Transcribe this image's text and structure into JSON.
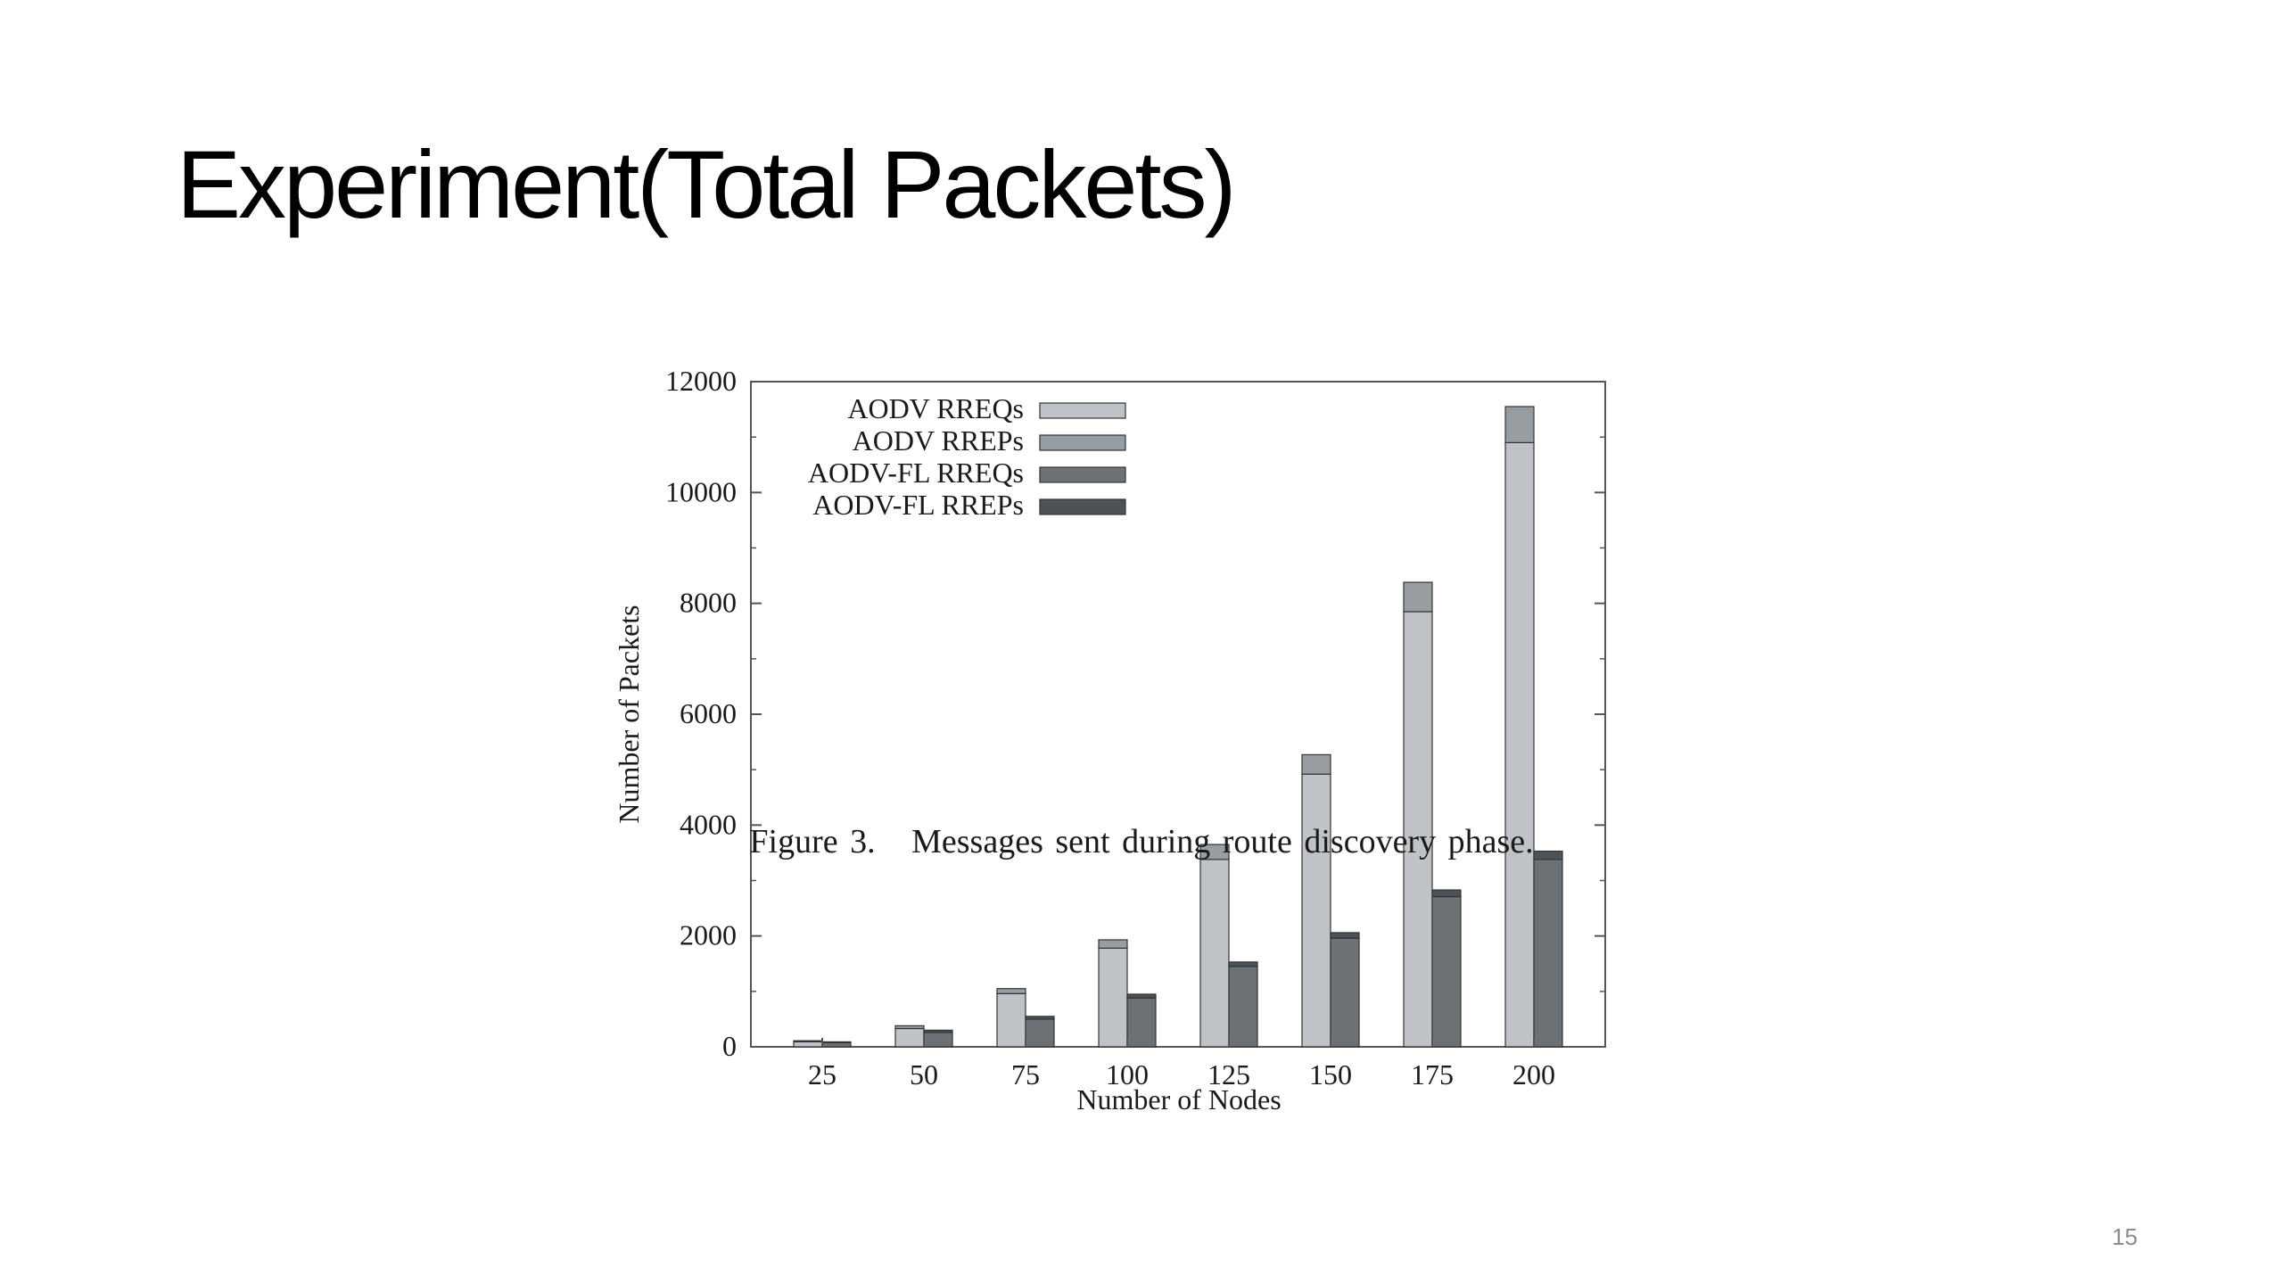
{
  "slide": {
    "title": "Experiment(Total Packets)",
    "caption": "Figure 3.   Messages sent during route discovery phase.",
    "page_number": "15"
  },
  "chart_data": {
    "type": "bar",
    "stacked": true,
    "grouped": true,
    "categories": [
      "25",
      "50",
      "75",
      "100",
      "125",
      "150",
      "175",
      "200"
    ],
    "xlabel": "Number of Nodes",
    "ylabel": "Number of Packets",
    "ylim": [
      0,
      12000
    ],
    "yticks": [
      0,
      2000,
      4000,
      6000,
      8000,
      10000,
      12000
    ],
    "grid": false,
    "legend_position": "top-left",
    "series": [
      {
        "name": "AODV RREQs",
        "group": "AODV",
        "color": "#bfc3c7",
        "values": [
          90,
          330,
          960,
          1780,
          3380,
          4920,
          7850,
          10900
        ]
      },
      {
        "name": "AODV RREPs",
        "group": "AODV",
        "color": "#989da2",
        "values": [
          20,
          50,
          90,
          150,
          270,
          350,
          530,
          650
        ]
      },
      {
        "name": "AODV-FL RREQs",
        "group": "AODV-FL",
        "color": "#6c7176",
        "values": [
          75,
          260,
          500,
          880,
          1450,
          1960,
          2710,
          3380
        ]
      },
      {
        "name": "AODV-FL RREPs",
        "group": "AODV-FL",
        "color": "#4d5256",
        "values": [
          15,
          40,
          50,
          70,
          80,
          100,
          120,
          150
        ]
      }
    ]
  }
}
